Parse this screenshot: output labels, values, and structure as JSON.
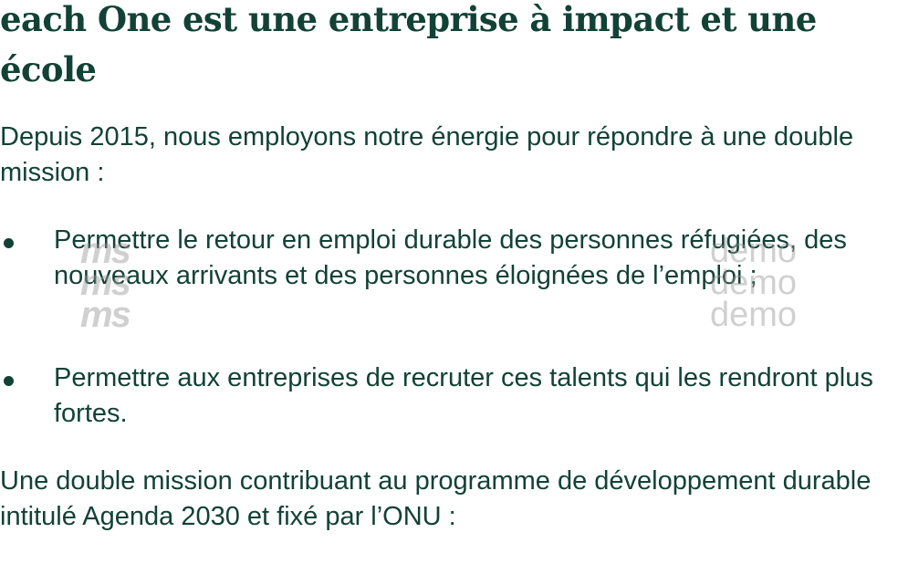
{
  "heading": "each One est une entreprise à impact et une école",
  "intro": "Depuis 2015, nous employons notre énergie pour répondre à une double mission :",
  "bullets": [
    "Permettre le retour en emploi durable des personnes réfugiées, des nouveaux arrivants et des personnes éloignées de l’emploi ;",
    "Permettre aux entreprises de recruter ces talents qui les rendront plus fortes."
  ],
  "outro": "Une double mission contribuant au programme de développement durable intitulé Agenda 2030 et fixé par l’ONU :",
  "watermarks": {
    "left": [
      "ms",
      "ms",
      "ms"
    ],
    "right": [
      "demo",
      "demo",
      "demo"
    ]
  },
  "colors": {
    "text": "#124236",
    "background": "#ffffff"
  }
}
